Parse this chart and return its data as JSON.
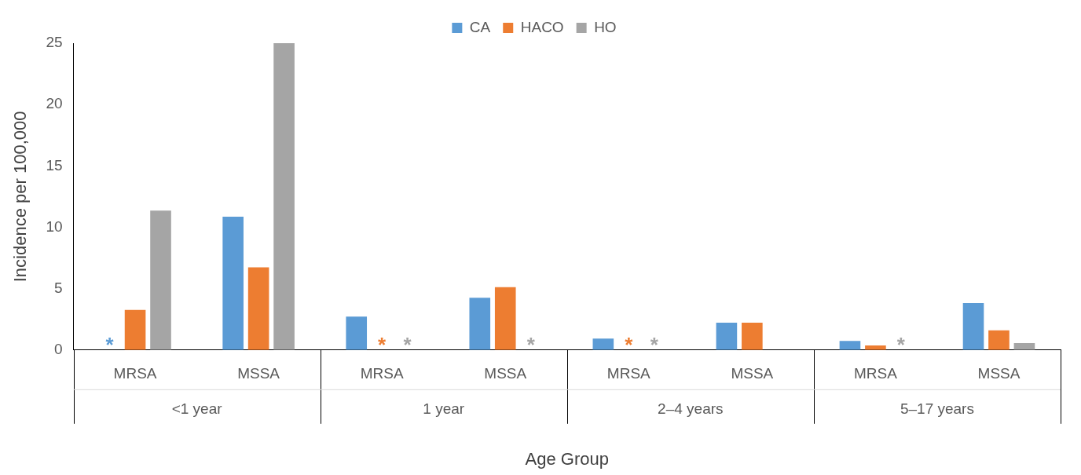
{
  "chart_data": {
    "type": "bar",
    "xlabel": "Age Group",
    "ylabel": "Incidence per 100,000",
    "categories": [
      "MRSA",
      "MSSA",
      "MRSA",
      "MSSA",
      "MRSA",
      "MSSA",
      "MRSA",
      "MSSA"
    ],
    "series": [
      {
        "name": "CA",
        "color": "#5b9bd5",
        "values": [
          null,
          10.86,
          2.72,
          4.26,
          0.93,
          2.22,
          0.74,
          3.83
        ],
        "value_labels": [
          "*",
          null,
          null,
          null,
          null,
          null,
          null,
          null
        ]
      },
      {
        "name": "HACO",
        "color": "#ed7d31",
        "values": [
          3.27,
          6.73,
          null,
          5.12,
          null,
          2.22,
          0.37,
          1.6
        ],
        "value_labels": [
          null,
          null,
          "*",
          null,
          "*",
          null,
          null,
          null
        ]
      },
      {
        "name": "HO",
        "color": "#a5a5a5",
        "values": [
          11.36,
          25.0,
          null,
          null,
          null,
          null,
          null,
          0.56
        ],
        "value_labels": [
          null,
          null,
          "*",
          "*",
          "*",
          null,
          "*",
          null
        ]
      }
    ],
    "annotations": [
      "<1 year",
      "1 year",
      "2–4 years",
      "5–17 years"
    ],
    "ylim": [
      0,
      25
    ],
    "yticks": [
      0,
      5,
      10,
      15,
      20,
      25
    ],
    "grid": false,
    "legend": "top"
  }
}
